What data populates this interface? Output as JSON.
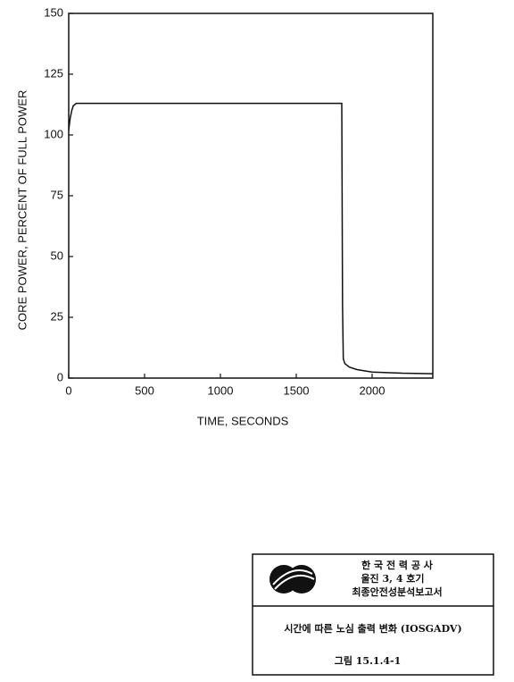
{
  "chart_data": {
    "type": "line",
    "xlabel": "TIME,  SECONDS",
    "ylabel": "CORE POWER,   PERCENT OF FULL POWER",
    "x": [
      0,
      10,
      20,
      30,
      50,
      100,
      300,
      600,
      1000,
      1300,
      1500,
      1790,
      1800,
      1805,
      1810,
      1820,
      1850,
      1900,
      2000,
      2200,
      2400
    ],
    "series": [
      {
        "color": "#111111",
        "values": [
          102,
          107,
          110,
          112,
          113,
          113,
          113,
          113,
          113,
          113,
          113,
          113,
          113,
          30,
          8,
          6,
          4.5,
          3.5,
          2.5,
          2,
          1.8
        ]
      }
    ],
    "xlim": [
      0,
      2400
    ],
    "xticks": [
      0,
      500,
      1000,
      1500,
      2000
    ],
    "ylim": [
      0,
      150
    ],
    "yticks": [
      0,
      25,
      50,
      75,
      100,
      125,
      150
    ],
    "grid": false
  },
  "title_block": {
    "company": "한 국 전 력 공 사",
    "plant": "울진 3, 4 호기",
    "report": "최종안전성분석보고서",
    "caption": "시간에 따른 노심 출력 변화 (IOSGADV)",
    "figure": "그림 15.1.4-1"
  }
}
